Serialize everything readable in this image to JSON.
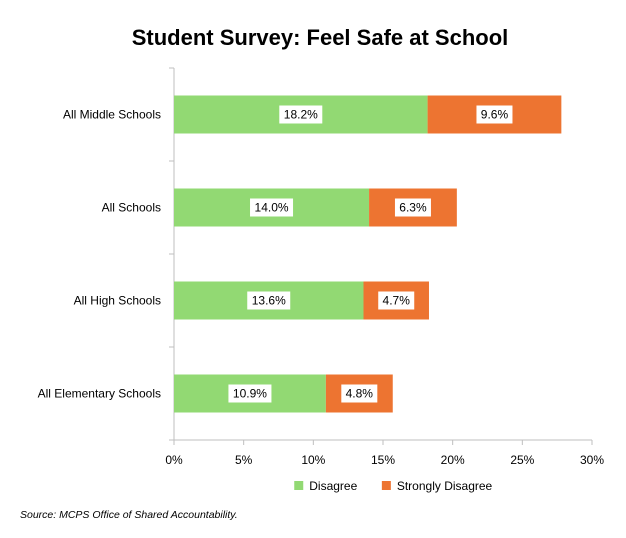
{
  "chart_data": {
    "type": "bar",
    "orientation": "horizontal",
    "stacked": true,
    "title": "Student Survey: Feel Safe at School",
    "categories": [
      "All Middle Schools",
      "All Schools",
      "All High Schools",
      "All Elementary Schools"
    ],
    "series": [
      {
        "name": "Disagree",
        "color": "#92D973",
        "values": [
          18.2,
          14.0,
          13.6,
          10.9
        ],
        "labels": [
          "18.2%",
          "14.0%",
          "13.6%",
          "10.9%"
        ]
      },
      {
        "name": "Strongly Disagree",
        "color": "#ED7431",
        "values": [
          9.6,
          6.3,
          4.7,
          4.8
        ],
        "labels": [
          "9.6%",
          "6.3%",
          "4.7%",
          "4.8%"
        ]
      }
    ],
    "xlim": [
      0,
      30
    ],
    "xticks": [
      0,
      5,
      10,
      15,
      20,
      25,
      30
    ],
    "xtick_labels": [
      "0%",
      "5%",
      "10%",
      "15%",
      "20%",
      "25%",
      "30%"
    ],
    "grid": false,
    "legend": "bottom",
    "source": "Source: MCPS Office of Shared Accountability."
  }
}
